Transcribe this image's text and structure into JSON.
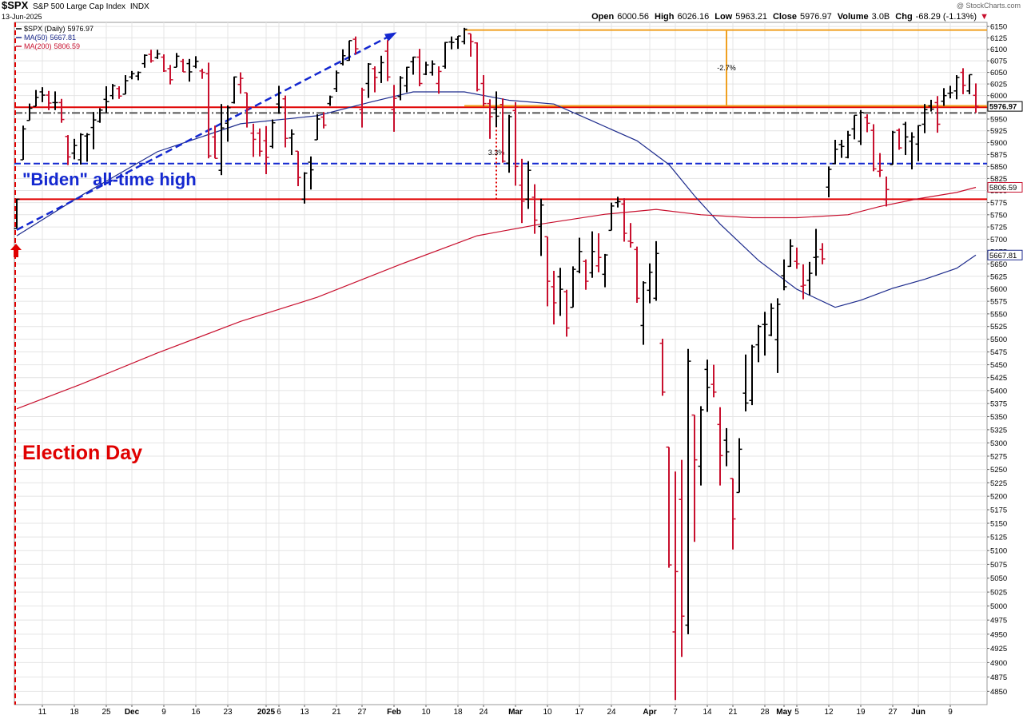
{
  "chart_data": {
    "type": "ohlc",
    "title": "$SPX",
    "subtitle": "S&P 500 Large Cap Index",
    "exchange": "INDX",
    "date": "13-Jun-2025",
    "watermark": "@ StockCharts.com",
    "price_legend": "$SPX (Daily)",
    "stats": [
      {
        "label": "Open",
        "value": 6000.56
      },
      {
        "label": "High",
        "value": 6026.16
      },
      {
        "label": "Low",
        "value": 5963.21
      },
      {
        "label": "Close",
        "value": 5976.97
      },
      {
        "label": "Volume",
        "value": "3.0B"
      },
      {
        "label": "Chg",
        "value": "-68.29 (-1.13%)"
      }
    ],
    "log_scale": true,
    "grid": true,
    "up_color": "#000000",
    "down_color": "#c8102e",
    "ylim": [
      4827,
      6159
    ],
    "yticks": [
      4850,
      4875,
      4900,
      4925,
      4950,
      4975,
      5000,
      5025,
      5050,
      5075,
      5100,
      5125,
      5150,
      5175,
      5200,
      5225,
      5250,
      5275,
      5300,
      5325,
      5350,
      5375,
      5400,
      5425,
      5450,
      5475,
      5500,
      5525,
      5550,
      5575,
      5600,
      5625,
      5650,
      5675,
      5700,
      5725,
      5750,
      5775,
      5800,
      5825,
      5850,
      5875,
      5900,
      5925,
      5950,
      5975,
      6000,
      6025,
      6050,
      6075,
      6100,
      6125,
      6150
    ],
    "categories": [
      null,
      null,
      null,
      null,
      "11",
      null,
      null,
      null,
      null,
      "18",
      null,
      null,
      null,
      null,
      "25",
      null,
      null,
      null,
      "Dec",
      null,
      null,
      null,
      null,
      "9",
      null,
      null,
      null,
      null,
      "16",
      null,
      null,
      null,
      null,
      "23",
      null,
      null,
      null,
      null,
      null,
      "2025",
      null,
      "6",
      null,
      null,
      null,
      "13",
      null,
      null,
      null,
      null,
      "21",
      null,
      null,
      null,
      "27",
      null,
      null,
      null,
      null,
      "Feb",
      null,
      null,
      null,
      null,
      "10",
      null,
      null,
      null,
      null,
      "18",
      null,
      null,
      null,
      "24",
      null,
      null,
      null,
      null,
      "Mar",
      null,
      null,
      null,
      null,
      "10",
      null,
      null,
      null,
      null,
      "17",
      null,
      null,
      null,
      null,
      "24",
      null,
      null,
      null,
      null,
      null,
      "Apr",
      null,
      null,
      null,
      "7",
      null,
      null,
      null,
      null,
      "14",
      null,
      null,
      null,
      "21",
      null,
      null,
      null,
      null,
      "28",
      null,
      null,
      "May",
      null,
      "5",
      null,
      null,
      null,
      null,
      "12",
      null,
      null,
      null,
      null,
      "19",
      null,
      null,
      null,
      null,
      "27",
      null,
      null,
      null,
      "Jun",
      null,
      null,
      null,
      null,
      "9",
      null,
      null,
      null,
      null
    ],
    "open": [
      5722,
      5864,
      5947,
      5977,
      6008,
      6001,
      5985,
      5985,
      5913,
      5878,
      5864,
      5914,
      5932,
      5945,
      5992,
      6000,
      6015,
      6003,
      6040,
      6042,
      6069,
      6089,
      6082,
      6083,
      6058,
      6061,
      6074,
      6069,
      6063,
      6053,
      6047,
      5912,
      5842,
      5941,
      5985,
      6024,
      6006,
      5920,
      5920,
      5904,
      5892,
      5982,
      5993,
      5910,
      5882,
      5782,
      5859,
      5906,
      5954,
      5983,
      6015,
      6069,
      6076,
      6122,
      5970,
      6026,
      6058,
      6050,
      6096,
      5970,
      5998,
      6021,
      6073,
      6083,
      6046,
      6050,
      6026,
      6063,
      6116,
      6122,
      6117,
      6134,
      6114,
      6026,
      5983,
      5971,
      5981,
      5857,
      5968,
      5811,
      5782,
      5786,
      5726,
      5705,
      5604,
      5624,
      5594,
      5563,
      5635,
      5655,
      5632,
      5646,
      5629,
      5718,
      5775,
      5772,
      5696,
      5679,
      5527,
      5597,
      5581,
      5492,
      5292,
      4954,
      5194,
      4966,
      5353,
      5256,
      5441,
      5412,
      5335,
      5305,
      5233,
      5207,
      5395,
      5381,
      5489,
      5529,
      5508,
      5499,
      5626,
      5645,
      5655,
      5605,
      5617,
      5663,
      5679,
      5807,
      5856,
      5896,
      5869,
      5929,
      5903,
      5953,
      5926,
      5840,
      5781,
      5854,
      5926,
      5939,
      5903,
      5897,
      5939,
      5978,
      5985,
      5988,
      6005,
      6010,
      6050,
      6010,
      6000.56
    ],
    "high": [
      5783,
      5936,
      5983,
      6012,
      6018,
      6010,
      6009,
      5993,
      5916,
      5908,
      5920,
      5920,
      5965,
      5973,
      6020,
      6025,
      6020,
      6044,
      6053,
      6052,
      6089,
      6099,
      6099,
      6089,
      6066,
      6092,
      6079,
      6079,
      6085,
      6058,
      6071,
      5936,
      5982,
      5979,
      6041,
      6050,
      6006,
      5940,
      5930,
      5935,
      5949,
      6021,
      6000,
      5928,
      5882,
      5838,
      5871,
      5960,
      5965,
      6000,
      6054,
      6100,
      6119,
      6128,
      6017,
      6070,
      6063,
      6086,
      6120,
      6023,
      6042,
      6062,
      6084,
      6101,
      6073,
      6076,
      6063,
      6116,
      6128,
      6129,
      6147,
      6134,
      6115,
      6044,
      5992,
      6009,
      5994,
      5959,
      5986,
      5866,
      5861,
      5813,
      5783,
      5705,
      5636,
      5642,
      5598,
      5645,
      5703,
      5659,
      5716,
      5712,
      5670,
      5775,
      5787,
      5784,
      5733,
      5685,
      5615,
      5651,
      5696,
      5501,
      5292,
      5246,
      5268,
      5481,
      5353,
      5370,
      5460,
      5450,
      5368,
      5328,
      5233,
      5309,
      5470,
      5489,
      5528,
      5554,
      5571,
      5581,
      5659,
      5700,
      5683,
      5649,
      5654,
      5721,
      5692,
      5850,
      5906,
      5906,
      5925,
      5958,
      5969,
      5960,
      5939,
      5878,
      5829,
      5925,
      5930,
      5944,
      5922,
      5937,
      5982,
      5991,
      5999,
      6016,
      6021,
      6044,
      6059,
      6045,
      6026.16
    ],
    "low": [
      5722,
      5864,
      5947,
      5977,
      5986,
      5969,
      5969,
      5942,
      5853,
      5865,
      5854,
      5860,
      5886,
      5942,
      5963,
      5992,
      5993,
      6003,
      6035,
      6033,
      6060,
      6071,
      6079,
      6051,
      6024,
      6061,
      6051,
      6030,
      6059,
      6036,
      5867,
      5867,
      5832,
      5902,
      5983,
      6004,
      5932,
      5870,
      5871,
      5834,
      5888,
      5961,
      5890,
      5874,
      5809,
      5773,
      5802,
      5906,
      5930,
      5978,
      6008,
      6065,
      6075,
      6089,
      5932,
      5995,
      6007,
      6027,
      6031,
      5923,
      5990,
      6007,
      6045,
      6020,
      6044,
      6043,
      6004,
      6058,
      6100,
      6101,
      6111,
      6084,
      6009,
      5977,
      5908,
      5933,
      5858,
      5837,
      5810,
      5733,
      5762,
      5711,
      5666,
      5565,
      5529,
      5546,
      5505,
      5563,
      5631,
      5598,
      5622,
      5633,
      5603,
      5718,
      5765,
      5695,
      5683,
      5572,
      5489,
      5571,
      5576,
      5390,
      5069,
      4835,
      4910,
      4950,
      5116,
      5220,
      5359,
      5387,
      5220,
      5256,
      5102,
      5207,
      5360,
      5372,
      5455,
      5468,
      5506,
      5434,
      5597,
      5644,
      5640,
      5579,
      5587,
      5626,
      5649,
      5786,
      5855,
      5868,
      5867,
      5907,
      5895,
      5922,
      5840,
      5828,
      5767,
      5854,
      5885,
      5874,
      5844,
      5861,
      5920,
      5966,
      5921,
      5978,
      5994,
      5992,
      6003,
      6003,
      5963.21
    ],
    "close": [
      5782,
      5929,
      5973,
      5996,
      6001,
      5984,
      5985,
      5949,
      5870,
      5894,
      5917,
      5917,
      5948,
      5969,
      5987,
      6021,
      5999,
      6032,
      6047,
      6050,
      6087,
      6075,
      6090,
      6053,
      6034,
      6085,
      6051,
      6051,
      6074,
      6050,
      5872,
      5867,
      5931,
      5974,
      6040,
      6037,
      5971,
      5907,
      5882,
      5869,
      5942,
      5975,
      5909,
      5918,
      5827,
      5836,
      5843,
      5950,
      5937,
      5997,
      6049,
      6086,
      6119,
      6101,
      6012,
      6068,
      6039,
      6071,
      6040,
      5994,
      6038,
      6061,
      6083,
      6026,
      6066,
      6068,
      6052,
      6115,
      6115,
      6129,
      6144,
      6117,
      6013,
      5983,
      5955,
      5956,
      5861,
      5955,
      5850,
      5778,
      5842,
      5739,
      5770,
      5615,
      5572,
      5599,
      5522,
      5639,
      5675,
      5615,
      5675,
      5663,
      5668,
      5768,
      5777,
      5712,
      5693,
      5581,
      5612,
      5633,
      5671,
      5397,
      5074,
      5062,
      4982,
      5457,
      5268,
      5363,
      5406,
      5397,
      5276,
      5283,
      5158,
      5288,
      5376,
      5485,
      5525,
      5529,
      5561,
      5569,
      5604,
      5686,
      5650,
      5607,
      5631,
      5664,
      5660,
      5844,
      5886,
      5892,
      5916,
      5958,
      5964,
      5941,
      5845,
      5842,
      5802,
      5922,
      5889,
      5912,
      5912,
      5936,
      5970,
      5971,
      5939,
      6000,
      6006,
      6039,
      6022,
      6045,
      5976.97
    ],
    "moving_averages": [
      {
        "name": "MA(50)",
        "color": "#1c2a8c",
        "x": [
          0,
          10,
          22,
          35,
          47,
          55,
          62,
          70,
          77,
          84,
          90,
          97,
          102,
          106,
          110,
          116,
          122,
          128,
          132,
          137,
          142,
          147,
          150
        ],
        "values": [
          5707,
          5789,
          5881,
          5940,
          5957,
          5985,
          6008,
          6008,
          5990,
          5982,
          5946,
          5904,
          5854,
          5789,
          5731,
          5657,
          5599,
          5563,
          5577,
          5601,
          5619,
          5641,
          5667.81
        ]
      },
      {
        "name": "MA(200)",
        "color": "#c8102e",
        "x": [
          0,
          10,
          22,
          35,
          47,
          60,
          72,
          82,
          92,
          100,
          107,
          115,
          122,
          130,
          135,
          141,
          147,
          150
        ],
        "values": [
          5365,
          5412,
          5473,
          5535,
          5583,
          5649,
          5707,
          5731,
          5751,
          5761,
          5750,
          5744,
          5744,
          5750,
          5767,
          5783,
          5796,
          5806.59
        ]
      }
    ],
    "hlines": [
      {
        "value": 5975,
        "color": "#e00000",
        "dash": "solid"
      },
      {
        "value": 5978,
        "color": "#f0a020",
        "dash": "solid",
        "start": 70
      },
      {
        "value": 6142,
        "color": "#f0a020",
        "dash": "solid",
        "start": 70
      },
      {
        "value": 5963,
        "color": "#555555",
        "dash": "dashdot"
      },
      {
        "value": 5856,
        "color": "#1428d0",
        "dash": "dashed"
      },
      {
        "value": 5782,
        "color": "#e00000",
        "dash": "solid"
      }
    ],
    "measures": [
      {
        "x": 111,
        "from": 6142,
        "to": 5978,
        "label": "-2.7%",
        "color": "#f0a020",
        "dash": "solid"
      },
      {
        "x": 75,
        "from": 5978,
        "to": 5782,
        "label": "3.3%",
        "color": "#e00000",
        "dash": "dotted"
      }
    ],
    "trendline": {
      "x": [
        0,
        59
      ],
      "values": [
        5719,
        6134
      ],
      "color": "#1428d0"
    },
    "vline": {
      "x": 0,
      "color": "#e00000"
    },
    "annotations": [
      "\"Biden\" all-time high",
      "Election Day"
    ]
  }
}
